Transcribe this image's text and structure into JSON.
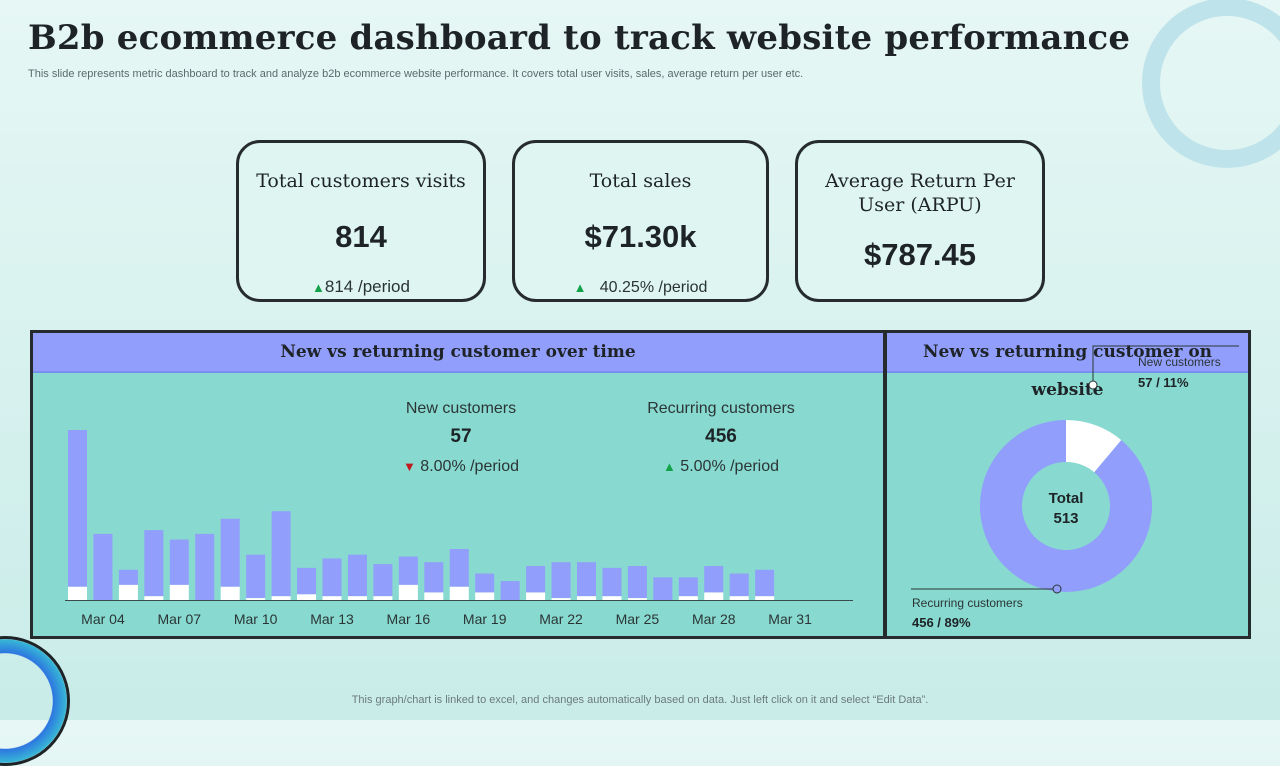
{
  "header": {
    "title": "B2b ecommerce dashboard to track website performance",
    "subtitle": "This slide represents metric dashboard to track and analyze  b2b ecommerce website performance. It covers total user visits, sales, average return per user etc."
  },
  "kpis": {
    "visits": {
      "label": "Total customers visits",
      "value": "814",
      "delta": "814 /period"
    },
    "sales": {
      "label": "Total sales",
      "value": "$71.30k",
      "delta": "40.25% /period"
    },
    "arpu": {
      "label": "Average Return Per User (ARPU)",
      "value": "$787.45"
    }
  },
  "bar_panel": {
    "title": "New vs returning customer over time",
    "new_customers": {
      "label": "New customers",
      "value": "57",
      "delta": "8.00% /period"
    },
    "recurring_customers": {
      "label": "Recurring customers",
      "value": "456",
      "delta": "5.00% /period"
    }
  },
  "donut_panel": {
    "title": "New vs returning customer on website",
    "center_label": "Total",
    "center_value": "513",
    "new_label": "New customers",
    "new_value": "57 / 11%",
    "recurring_label": "Recurring customers",
    "recurring_value": "456 / 89%"
  },
  "footer": "This graph/chart is linked to excel,  and changes automatically based on data. Just left click on it and select “Edit Data”.",
  "colors": {
    "bar_returning": "#919efb",
    "bar_new": "#ffffff",
    "up": "#12a34a",
    "down": "#c2191f"
  },
  "chart_data": [
    {
      "type": "bar",
      "title": "New vs returning customer over time",
      "stacked": true,
      "categories": [
        "Mar 03",
        "Mar 04",
        "Mar 05",
        "Mar 06",
        "Mar 07",
        "Mar 08",
        "Mar 09",
        "Mar 10",
        "Mar 11",
        "Mar 12",
        "Mar 13",
        "Mar 14",
        "Mar 15",
        "Mar 16",
        "Mar 17",
        "Mar 18",
        "Mar 19",
        "Mar 20",
        "Mar 21",
        "Mar 22",
        "Mar 23",
        "Mar 24",
        "Mar 25",
        "Mar 26",
        "Mar 27",
        "Mar 28",
        "Mar 29",
        "Mar 30",
        "Mar 31"
      ],
      "tick_labels": [
        "Mar 04",
        "Mar 07",
        "Mar 10",
        "Mar 13",
        "Mar 16",
        "Mar 19",
        "Mar 22",
        "Mar 25",
        "Mar 28",
        "Mar 31"
      ],
      "series": [
        {
          "name": "New customers",
          "values": [
            7,
            0,
            8,
            2,
            8,
            0,
            7,
            1,
            2,
            3,
            2,
            2,
            2,
            8,
            4,
            7,
            4,
            0,
            4,
            1,
            2,
            2,
            1,
            0,
            2,
            4,
            2,
            2,
            0
          ]
        },
        {
          "name": "Recurring customers",
          "values": [
            83,
            35,
            8,
            35,
            24,
            35,
            36,
            23,
            45,
            14,
            20,
            22,
            17,
            15,
            16,
            20,
            10,
            10,
            14,
            19,
            18,
            15,
            17,
            12,
            10,
            14,
            12,
            14,
            0
          ]
        }
      ]
    },
    {
      "type": "pie",
      "title": "New vs returning customer on website",
      "donut": true,
      "labels": [
        "New customers",
        "Recurring customers"
      ],
      "values": [
        57,
        456
      ],
      "percent": [
        11,
        89
      ],
      "total": 513
    }
  ]
}
